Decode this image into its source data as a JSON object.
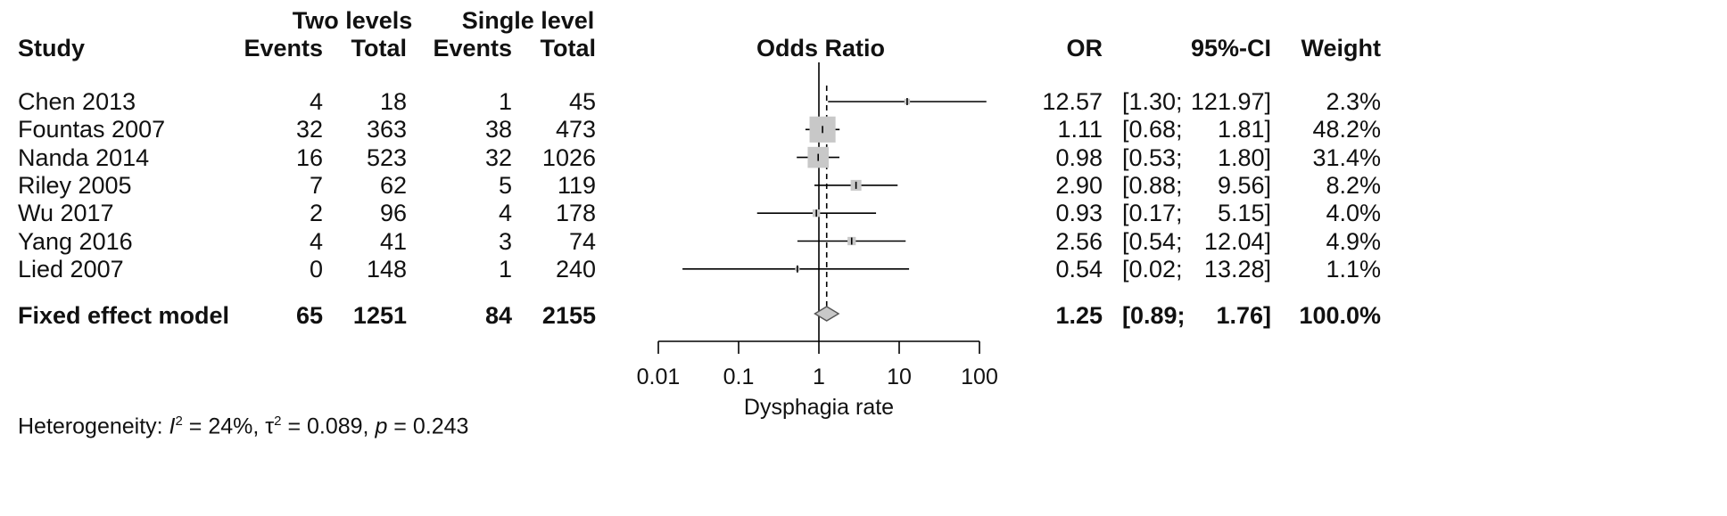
{
  "headers": {
    "group1": "Two levels",
    "group2": "Single level",
    "study": "Study",
    "events": "Events",
    "total": "Total",
    "plot_title": "Odds Ratio",
    "or": "OR",
    "ci": "95%-CI",
    "weight": "Weight"
  },
  "rows": [
    {
      "study": "Chen 2013",
      "e1": "4",
      "t1": "18",
      "e2": "1",
      "t2": "45",
      "or": "12.57",
      "ci_lo": "[1.30;",
      "ci_hi": "121.97]",
      "weight": "2.3%"
    },
    {
      "study": "Fountas 2007",
      "e1": "32",
      "t1": "363",
      "e2": "38",
      "t2": "473",
      "or": "1.11",
      "ci_lo": "[0.68;",
      "ci_hi": "1.81]",
      "weight": "48.2%"
    },
    {
      "study": "Nanda 2014",
      "e1": "16",
      "t1": "523",
      "e2": "32",
      "t2": "1026",
      "or": "0.98",
      "ci_lo": "[0.53;",
      "ci_hi": "1.80]",
      "weight": "31.4%"
    },
    {
      "study": "Riley 2005",
      "e1": "7",
      "t1": "62",
      "e2": "5",
      "t2": "119",
      "or": "2.90",
      "ci_lo": "[0.88;",
      "ci_hi": "9.56]",
      "weight": "8.2%"
    },
    {
      "study": "Wu 2017",
      "e1": "2",
      "t1": "96",
      "e2": "4",
      "t2": "178",
      "or": "0.93",
      "ci_lo": "[0.17;",
      "ci_hi": "5.15]",
      "weight": "4.0%"
    },
    {
      "study": "Yang 2016",
      "e1": "4",
      "t1": "41",
      "e2": "3",
      "t2": "74",
      "or": "2.56",
      "ci_lo": "[0.54;",
      "ci_hi": "12.04]",
      "weight": "4.9%"
    },
    {
      "study": "Lied 2007",
      "e1": "0",
      "t1": "148",
      "e2": "1",
      "t2": "240",
      "or": "0.54",
      "ci_lo": "[0.02;",
      "ci_hi": "13.28]",
      "weight": "1.1%"
    }
  ],
  "fixed": {
    "label": "Fixed effect model",
    "e1": "65",
    "t1": "1251",
    "e2": "84",
    "t2": "2155",
    "or": "1.25",
    "ci_lo": "[0.89;",
    "ci_hi": "1.76]",
    "weight": "100.0%"
  },
  "heterogeneity": {
    "prefix": "Heterogeneity: ",
    "i_sym": "I",
    "sup2": "2",
    "i_val": " = 24%, ",
    "tau_sym": "τ",
    "tau_val": " = 0.089, ",
    "p_sym": "p",
    "p_val": " = 0.243"
  },
  "chart_data": {
    "type": "forest",
    "title": "Odds Ratio",
    "xlabel": "Dysphagia rate",
    "x_scale": "log",
    "xlim": [
      0.01,
      100
    ],
    "ticks": [
      0.01,
      0.1,
      1,
      10,
      100
    ],
    "tick_labels": [
      "0.01",
      "0.1",
      "1",
      "10",
      "100"
    ],
    "null_value": 1,
    "studies": [
      {
        "name": "Chen 2013",
        "or": 12.57,
        "lo": 1.3,
        "hi": 121.97,
        "weight": 2.3
      },
      {
        "name": "Fountas 2007",
        "or": 1.11,
        "lo": 0.68,
        "hi": 1.81,
        "weight": 48.2
      },
      {
        "name": "Nanda 2014",
        "or": 0.98,
        "lo": 0.53,
        "hi": 1.8,
        "weight": 31.4
      },
      {
        "name": "Riley 2005",
        "or": 2.9,
        "lo": 0.88,
        "hi": 9.56,
        "weight": 8.2
      },
      {
        "name": "Wu 2017",
        "or": 0.93,
        "lo": 0.17,
        "hi": 5.15,
        "weight": 4.0
      },
      {
        "name": "Yang 2016",
        "or": 2.56,
        "lo": 0.54,
        "hi": 12.04,
        "weight": 4.9
      },
      {
        "name": "Lied 2007",
        "or": 0.54,
        "lo": 0.02,
        "hi": 13.28,
        "weight": 1.1
      }
    ],
    "pooled": {
      "name": "Fixed effect model",
      "or": 1.25,
      "lo": 0.89,
      "hi": 1.76
    },
    "colors": {
      "square": "#c8c8c8",
      "diamond": "#c8c8c8",
      "line": "#000000"
    }
  }
}
